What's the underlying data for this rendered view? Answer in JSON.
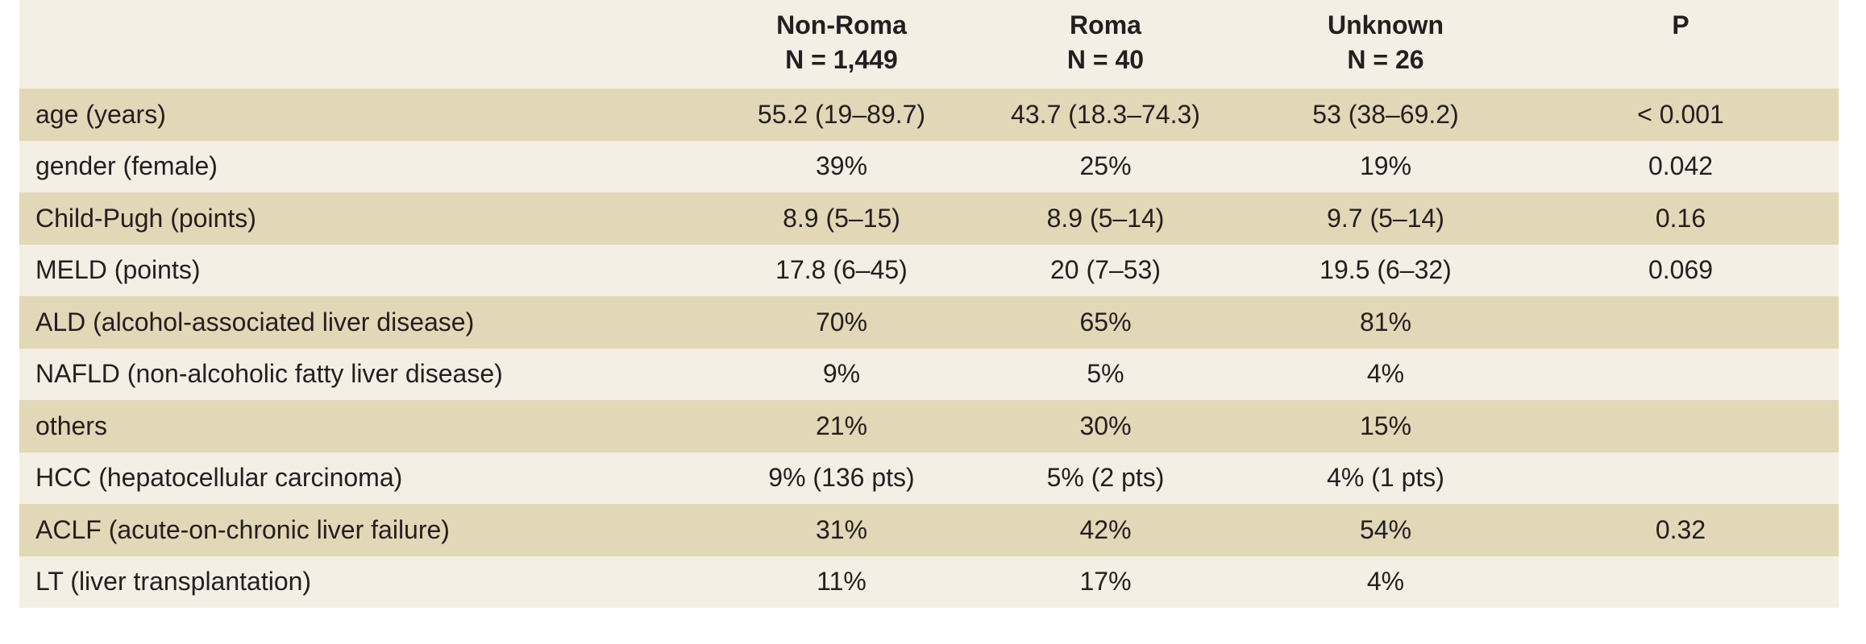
{
  "table": {
    "headers": [
      {
        "title": "",
        "sub": ""
      },
      {
        "title": "Non-Roma",
        "sub": "N = 1,449"
      },
      {
        "title": "Roma",
        "sub": "N = 40"
      },
      {
        "title": "Unknown",
        "sub": "N = 26"
      },
      {
        "title": "P",
        "sub": ""
      }
    ],
    "rows": [
      {
        "label": "age (years)",
        "non_roma": "55.2 (19–89.7)",
        "roma": "43.7 (18.3–74.3)",
        "unknown": "53 (38–69.2)",
        "p": "< 0.001"
      },
      {
        "label": "gender (female)",
        "non_roma": "39%",
        "roma": "25%",
        "unknown": "19%",
        "p": "0.042"
      },
      {
        "label": "Child-Pugh (points)",
        "non_roma": "8.9 (5–15)",
        "roma": "8.9 (5–14)",
        "unknown": "9.7 (5–14)",
        "p": "0.16"
      },
      {
        "label": "MELD (points)",
        "non_roma": "17.8 (6–45)",
        "roma": "20 (7–53)",
        "unknown": "19.5 (6–32)",
        "p": "0.069"
      },
      {
        "label": "ALD (alcohol-associated liver disease)",
        "non_roma": "70%",
        "roma": "65%",
        "unknown": "81%",
        "p": ""
      },
      {
        "label": "NAFLD (non-alcoholic fatty liver disease)",
        "non_roma": "9%",
        "roma": "5%",
        "unknown": "4%",
        "p": ""
      },
      {
        "label": "others",
        "non_roma": "21%",
        "roma": "30%",
        "unknown": "15%",
        "p": ""
      },
      {
        "label": "HCC (hepatocellular carcinoma)",
        "non_roma": "9% (136 pts)",
        "roma": "5% (2 pts)",
        "unknown": "4% (1 pts)",
        "p": ""
      },
      {
        "label": "ACLF (acute-on-chronic liver failure)",
        "non_roma": "31%",
        "roma": "42%",
        "unknown": "54%",
        "p": "0.32"
      },
      {
        "label": "LT (liver transplantation)",
        "non_roma": "11%",
        "roma": "17%",
        "unknown": "4%",
        "p": ""
      }
    ]
  },
  "colors": {
    "header_bg": "#f3efe4",
    "row_dark": "#e2d7b6",
    "row_light": "#f3efe4",
    "text": "#231f20"
  }
}
